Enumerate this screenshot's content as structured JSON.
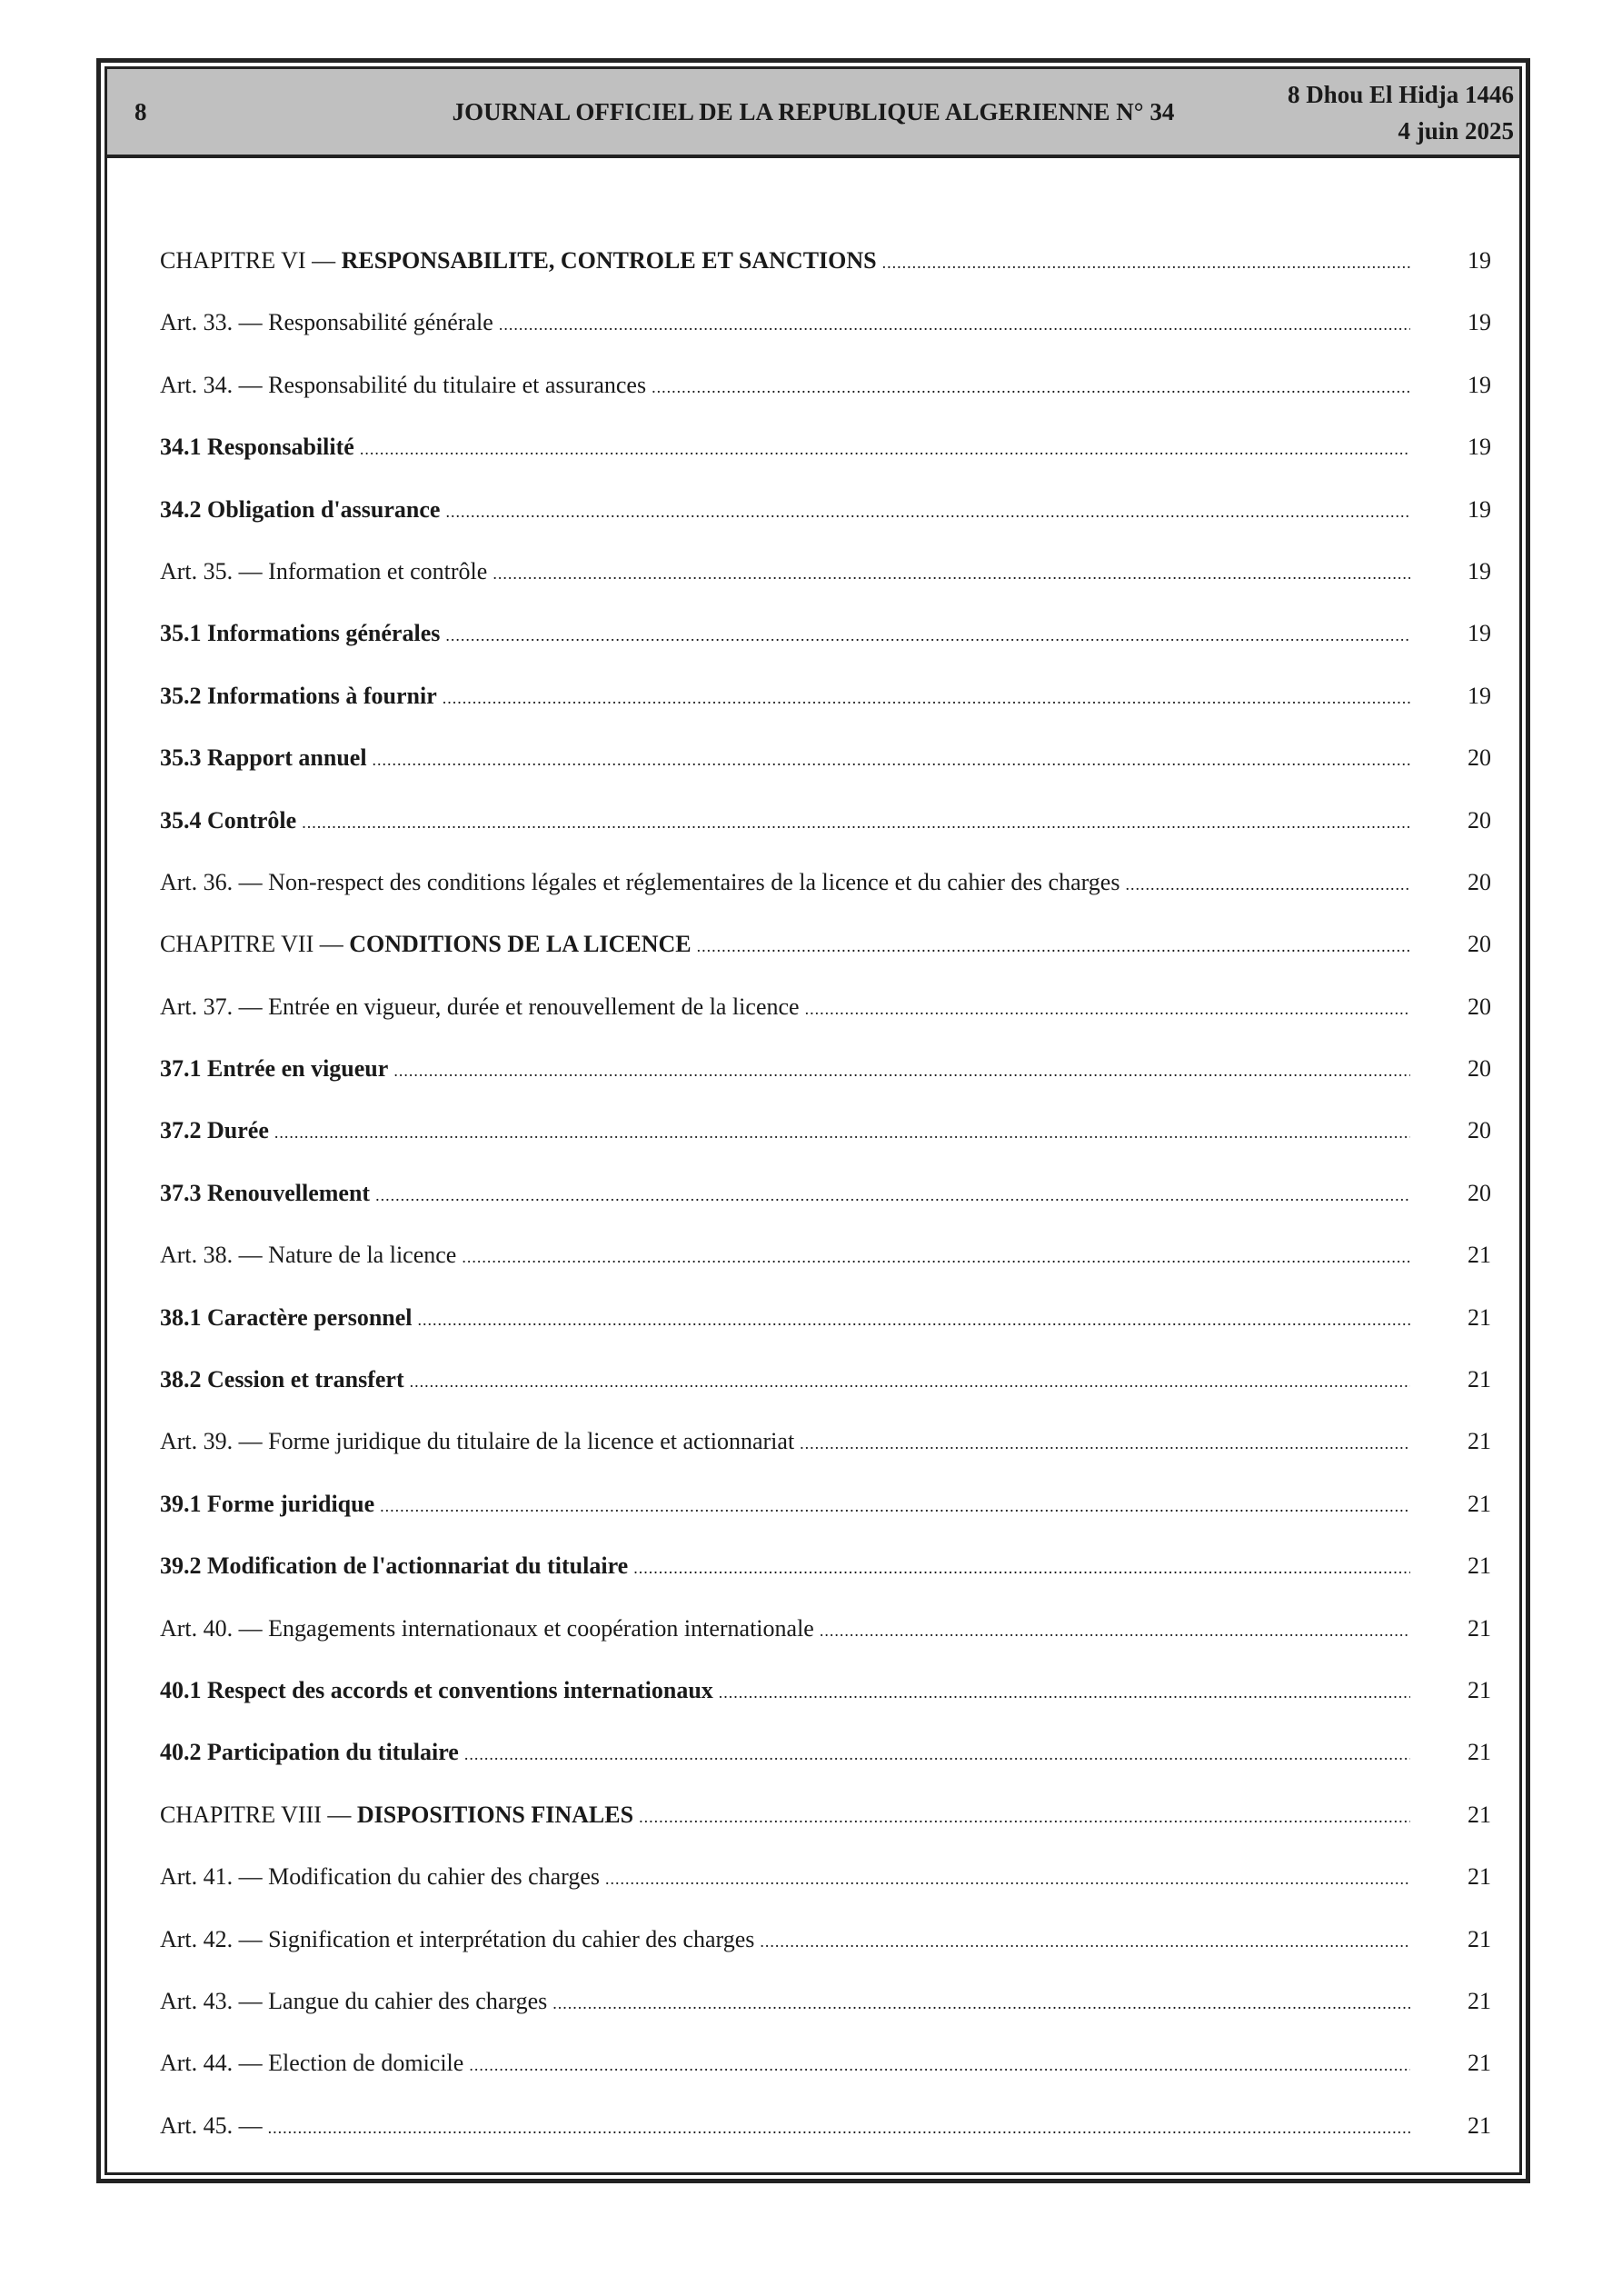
{
  "header": {
    "page_number": "8",
    "title": "JOURNAL OFFICIEL DE LA REPUBLIQUE ALGERIENNE N° 34",
    "date_hijri": "8 Dhou El Hidja 1446",
    "date_gregorian": "4 juin 2025"
  },
  "toc": [
    {
      "type": "chapter",
      "prefix": "CHAPITRE VI — ",
      "title": "RESPONSABILITE, CONTROLE ET SANCTIONS",
      "page": "19"
    },
    {
      "type": "article",
      "prefix": "Art. 33. — ",
      "title": "Responsabilité générale",
      "page": "19"
    },
    {
      "type": "article",
      "prefix": "Art. 34. — ",
      "title": "Responsabilité du titulaire et assurances",
      "page": "19"
    },
    {
      "type": "section",
      "prefix": "",
      "title": "34.1 Responsabilité",
      "page": "19"
    },
    {
      "type": "section",
      "prefix": "",
      "title": "34.2 Obligation d'assurance",
      "page": "19"
    },
    {
      "type": "article",
      "prefix": "Art. 35. — ",
      "title": "Information et contrôle",
      "page": "19"
    },
    {
      "type": "section",
      "prefix": "",
      "title": "35.1 Informations générales",
      "page": "19"
    },
    {
      "type": "section",
      "prefix": "",
      "title": "35.2 Informations à fournir",
      "page": "19"
    },
    {
      "type": "section",
      "prefix": "",
      "title": "35.3 Rapport annuel",
      "page": "20"
    },
    {
      "type": "section",
      "prefix": "",
      "title": "35.4 Contrôle",
      "page": "20"
    },
    {
      "type": "article",
      "prefix": "Art. 36. — ",
      "title": "Non-respect des conditions légales et réglementaires de la licence et du cahier des charges",
      "page": "20"
    },
    {
      "type": "chapter",
      "prefix": "CHAPITRE VII — ",
      "title": "CONDITIONS DE LA LICENCE",
      "page": "20"
    },
    {
      "type": "article",
      "prefix": "Art. 37. — ",
      "title": "Entrée en vigueur, durée et renouvellement de la licence",
      "page": "20"
    },
    {
      "type": "section",
      "prefix": "",
      "title": "37.1 Entrée en vigueur",
      "page": "20"
    },
    {
      "type": "section",
      "prefix": "",
      "title": "37.2 Durée",
      "page": "20"
    },
    {
      "type": "section",
      "prefix": "",
      "title": "37.3 Renouvellement",
      "page": "20"
    },
    {
      "type": "article",
      "prefix": "Art. 38. — ",
      "title": "Nature de la licence",
      "page": "21"
    },
    {
      "type": "section",
      "prefix": "",
      "title": "38.1 Caractère personnel",
      "page": "21"
    },
    {
      "type": "section",
      "prefix": "",
      "title": "38.2 Cession et transfert",
      "page": "21"
    },
    {
      "type": "article",
      "prefix": "Art. 39. — ",
      "title": "Forme juridique du titulaire de la licence et actionnariat",
      "page": "21"
    },
    {
      "type": "section",
      "prefix": "",
      "title": "39.1 Forme juridique",
      "page": "21"
    },
    {
      "type": "section",
      "prefix": "",
      "title": "39.2 Modification de l'actionnariat du titulaire",
      "page": "21"
    },
    {
      "type": "article",
      "prefix": "Art. 40. — ",
      "title": "Engagements internationaux et coopération internationale",
      "page": "21"
    },
    {
      "type": "section",
      "prefix": "",
      "title": "40.1 Respect des accords et conventions internationaux",
      "page": "21"
    },
    {
      "type": "section",
      "prefix": "",
      "title": "40.2 Participation du titulaire",
      "page": "21"
    },
    {
      "type": "chapter",
      "prefix": "CHAPITRE VIII — ",
      "title": "DISPOSITIONS FINALES",
      "page": "21"
    },
    {
      "type": "article",
      "prefix": "Art. 41. — ",
      "title": "Modification du cahier des charges",
      "page": "21"
    },
    {
      "type": "article",
      "prefix": "Art. 42. — ",
      "title": "Signification et interprétation du cahier des charges",
      "page": "21"
    },
    {
      "type": "article",
      "prefix": "Art. 43. — ",
      "title": "Langue du cahier des charges",
      "page": "21"
    },
    {
      "type": "article",
      "prefix": "Art. 44. — ",
      "title": "Election de domicile",
      "page": "21"
    },
    {
      "type": "article",
      "prefix": "Art. 45. —",
      "title": "",
      "page": "21"
    }
  ]
}
